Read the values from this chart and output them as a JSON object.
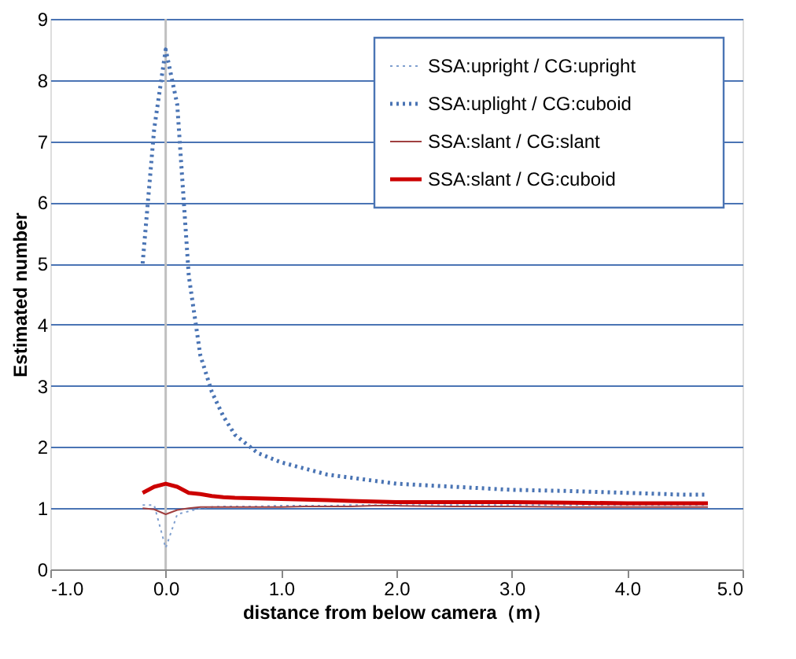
{
  "chart_data": {
    "type": "line",
    "xlabel": "distance from below camera（m）",
    "ylabel": "Estimated number",
    "x": [
      -0.2,
      -0.1,
      0.0,
      0.1,
      0.2,
      0.3,
      0.4,
      0.5,
      0.6,
      0.8,
      1.0,
      1.2,
      1.4,
      1.6,
      1.8,
      2.0,
      2.5,
      3.0,
      3.5,
      4.0,
      4.5,
      4.7
    ],
    "series": [
      {
        "name": "SSA:upright / CG:upright",
        "color": "#7f9fcf",
        "line_style": "dotted",
        "values": [
          1.05,
          1.05,
          0.35,
          0.9,
          0.95,
          1.0,
          1.02,
          1.03,
          1.03,
          1.03,
          1.04,
          1.04,
          1.04,
          1.05,
          1.05,
          1.05,
          1.05,
          1.05,
          1.05,
          1.05,
          1.05,
          1.05
        ]
      },
      {
        "name": "SSA:uplight / CG:cuboid",
        "color": "#4a74b4",
        "line_style": "dotted",
        "values": [
          5.0,
          7.2,
          8.5,
          7.6,
          4.8,
          3.5,
          2.9,
          2.5,
          2.2,
          1.9,
          1.75,
          1.65,
          1.55,
          1.5,
          1.45,
          1.4,
          1.35,
          1.3,
          1.28,
          1.25,
          1.22,
          1.22
        ]
      },
      {
        "name": "SSA:slant    / CG:slant",
        "color": "#a04040",
        "line_style": "solid",
        "values": [
          1.0,
          0.98,
          0.9,
          0.97,
          1.0,
          1.02,
          1.02,
          1.02,
          1.02,
          1.02,
          1.02,
          1.03,
          1.03,
          1.03,
          1.04,
          1.04,
          1.03,
          1.03,
          1.02,
          1.02,
          1.02,
          1.02
        ]
      },
      {
        "name": "SSA:slant    / CG:cuboid",
        "color": "#cc0000",
        "line_style": "solid",
        "values": [
          1.25,
          1.35,
          1.4,
          1.35,
          1.25,
          1.23,
          1.2,
          1.18,
          1.17,
          1.16,
          1.15,
          1.14,
          1.13,
          1.12,
          1.11,
          1.1,
          1.1,
          1.1,
          1.09,
          1.08,
          1.08,
          1.08
        ]
      }
    ],
    "xlim": [
      -1.0,
      5.0
    ],
    "xticks": [
      {
        "value": -1,
        "label": "-1.0"
      },
      {
        "value": 0,
        "label": "0.0"
      },
      {
        "value": 1,
        "label": "1.0"
      },
      {
        "value": 2,
        "label": "2.0"
      },
      {
        "value": 3,
        "label": "3.0"
      },
      {
        "value": 4,
        "label": "4.0"
      },
      {
        "value": 5,
        "label": "5.0"
      }
    ],
    "ylim": [
      0,
      9
    ],
    "yticks": [
      0,
      1,
      2,
      3,
      4,
      5,
      6,
      7,
      8,
      9
    ],
    "ref_lines": [
      {
        "axis": "x",
        "value": 0,
        "color": "#c0c0c0"
      }
    ],
    "grid": "y",
    "legend": "top right"
  }
}
